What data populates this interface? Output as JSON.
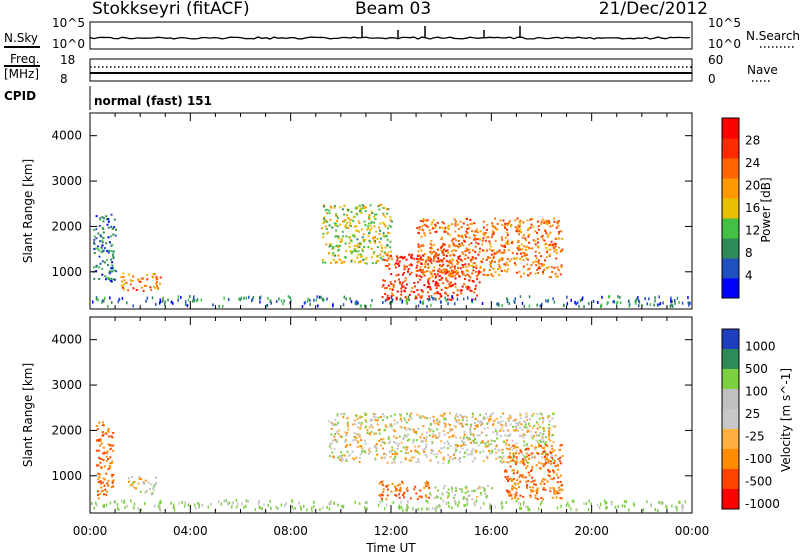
{
  "header": {
    "station": "Stokkseyri (fitACF)",
    "beam": "Beam 03",
    "date": "21/Dec/2012"
  },
  "noise_panel": {
    "left_label": "N.Sky",
    "right_label": "N.Search",
    "tick_top": "10^5",
    "tick_bottom": "10^0",
    "tick_top_right": "10^5",
    "tick_bottom_right": "10^0"
  },
  "freq_panel": {
    "left_label_1": "Freq.",
    "left_label_2": "[MHz]",
    "right_label": "Nave",
    "left_ticks": [
      "18",
      "8"
    ],
    "right_ticks": [
      "60",
      "0"
    ]
  },
  "cpid": {
    "label": "CPID",
    "value": "normal (fast) 151"
  },
  "colors": {
    "power": [
      "#0000ff",
      "#2050c0",
      "#2e8b57",
      "#44c044",
      "#e8c000",
      "#ff9900",
      "#ff6600",
      "#ff2a00",
      "#ff0000"
    ],
    "velocity": [
      "#ff0000",
      "#ff4400",
      "#ff8c00",
      "#ffb040",
      "#c8c8c8",
      "#c0c0c0",
      "#7dd040",
      "#2e8b57",
      "#1f3fbf"
    ],
    "ground_scatter": "#a0a0a0"
  },
  "chart_data": [
    {
      "type": "heatmap",
      "name": "power",
      "title": "",
      "xlabel": "",
      "ylabel": "Slant Range [km]",
      "xlim": [
        0,
        24
      ],
      "ylim": [
        180,
        4500
      ],
      "y_ticks": [
        "1000",
        "2000",
        "3000",
        "4000"
      ],
      "colorbar_label": "Power [dB]",
      "colorbar_ticks": [
        "4",
        "8",
        "12",
        "16",
        "20",
        "24",
        "28"
      ],
      "colorbar_range": [
        0,
        30
      ],
      "regions": [
        {
          "t0": 0.1,
          "t1": 1.0,
          "r0": 800,
          "r1": 2300,
          "level": 6
        },
        {
          "t0": 1.2,
          "t1": 2.8,
          "r0": 600,
          "r1": 1000,
          "level": 20
        },
        {
          "t0": 9.2,
          "t1": 12.0,
          "r0": 1200,
          "r1": 2500,
          "level": 14
        },
        {
          "t0": 11.6,
          "t1": 15.5,
          "r0": 400,
          "r1": 1400,
          "level": 26
        },
        {
          "t0": 13.0,
          "t1": 18.8,
          "r0": 900,
          "r1": 2200,
          "level": 22
        }
      ]
    },
    {
      "type": "heatmap",
      "name": "velocity",
      "title": "",
      "xlabel": "Time UT",
      "ylabel": "Slant Range [km]",
      "xlim": [
        0,
        24
      ],
      "ylim": [
        180,
        4500
      ],
      "x_ticks": [
        "00:00",
        "04:00",
        "08:00",
        "12:00",
        "16:00",
        "20:00",
        "00:00"
      ],
      "y_ticks": [
        "1000",
        "2000",
        "3000",
        "4000"
      ],
      "colorbar_label": "Velocity [m s^-1]",
      "colorbar_ticks": [
        "1000",
        "500",
        "100",
        "25",
        "-25",
        "-100",
        "-500",
        "-1000"
      ],
      "regions": [
        {
          "t0": 0.2,
          "t1": 0.9,
          "r0": 500,
          "r1": 2200,
          "level": -300
        },
        {
          "t0": 1.5,
          "t1": 2.6,
          "r0": 600,
          "r1": 1000,
          "level": 0
        },
        {
          "t0": 9.5,
          "t1": 18.5,
          "r0": 1300,
          "r1": 2400,
          "level": 0
        },
        {
          "t0": 11.5,
          "t1": 13.5,
          "r0": 500,
          "r1": 900,
          "level": -300
        },
        {
          "t0": 13.5,
          "t1": 16.0,
          "r0": 500,
          "r1": 800,
          "level": 50
        },
        {
          "t0": 16.5,
          "t1": 18.8,
          "r0": 500,
          "r1": 1700,
          "level": -300
        }
      ]
    }
  ]
}
